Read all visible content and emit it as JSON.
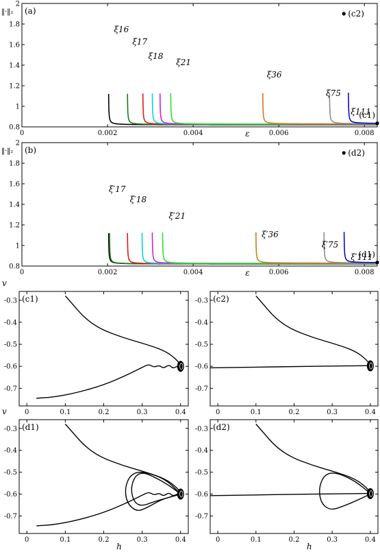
{
  "chart_data": [
    {
      "id": "a",
      "type": "line",
      "panel_label": "(a)",
      "ylabel": "‖·‖₂",
      "xlabel": "ε",
      "xlim": [
        0,
        0.0083
      ],
      "ylim": [
        0.8,
        2.0
      ],
      "xticks": [
        0,
        0.002,
        0.004,
        0.006,
        0.008
      ],
      "xtick_labels": [
        "0",
        "0.002",
        "0.004",
        "0.006",
        "0.008"
      ],
      "yticks": [
        0.8,
        1.0,
        1.2,
        1.4,
        1.6,
        1.8,
        2.0
      ],
      "ytick_labels": [
        "0.8",
        "1",
        "1.2",
        "1.4",
        "1.6",
        "1.8",
        "2"
      ],
      "series": [
        {
          "name": "ξ16",
          "x_asym": 0.00202,
          "x_end": 0.0083,
          "y_floor": 0.82,
          "color": "#000000",
          "label_x": 0.00215,
          "label_y": 1.72
        },
        {
          "name": "ξ17",
          "x_asym": 0.00246,
          "x_end": 0.0083,
          "y_floor": 0.822,
          "color": "#1a7a1a",
          "label_x": 0.00258,
          "label_y": 1.6
        },
        {
          "name": "ξ18",
          "x_asym": 0.00282,
          "x_end": 0.0083,
          "y_floor": 0.824,
          "color": "#e01818",
          "label_x": 0.00295,
          "label_y": 1.46
        },
        {
          "name": "",
          "x_asym": 0.00304,
          "x_end": 0.0083,
          "y_floor": 0.825,
          "color": "#00d4e0",
          "label_x": 0,
          "label_y": 0
        },
        {
          "name": "",
          "x_asym": 0.00322,
          "x_end": 0.0083,
          "y_floor": 0.826,
          "color": "#d020d0",
          "label_x": 0,
          "label_y": 0
        },
        {
          "name": "ξ21",
          "x_asym": 0.00347,
          "x_end": 0.0083,
          "y_floor": 0.827,
          "color": "#30e030",
          "label_x": 0.0036,
          "label_y": 1.4
        },
        {
          "name": "ξ36",
          "x_asym": 0.00562,
          "x_end": 0.0083,
          "y_floor": 0.828,
          "color": "#cc7a20",
          "label_x": 0.00572,
          "label_y": 1.28
        },
        {
          "name": "ξ75",
          "x_asym": 0.00718,
          "x_end": 0.0083,
          "y_floor": 0.829,
          "color": "#8c8c8c",
          "label_x": 0.0071,
          "label_y": 1.1
        },
        {
          "name": "ξ111",
          "x_asym": 0.00762,
          "x_end": 0.0083,
          "y_floor": 0.832,
          "color": "#0a0ac8",
          "label_x": 0.00768,
          "label_y": 0.92
        }
      ],
      "points": [
        {
          "label": "(c2)",
          "x": 0.00752,
          "y": 1.9
        },
        {
          "label": "(c1)",
          "x": 0.0083,
          "y": 0.835
        }
      ]
    },
    {
      "id": "b",
      "type": "line",
      "panel_label": "(b)",
      "ylabel": "‖·‖₂",
      "xlabel": "ε",
      "xlim": [
        0,
        0.0083
      ],
      "ylim": [
        0.8,
        2.0
      ],
      "xticks": [
        0,
        0.002,
        0.004,
        0.006,
        0.008
      ],
      "xtick_labels": [
        "0",
        "0.002",
        "0.004",
        "0.006",
        "0.008"
      ],
      "yticks": [
        0.8,
        1.0,
        1.2,
        1.4,
        1.6,
        1.8,
        2.0
      ],
      "ytick_labels": [
        "0.8",
        "1",
        "1.2",
        "1.4",
        "1.6",
        "1.8",
        "2"
      ],
      "series": [
        {
          "name": "",
          "x_asym": 0.00202,
          "x_end": 0.0083,
          "y_floor": 0.82,
          "color": "#000000",
          "label_x": 0,
          "label_y": 0
        },
        {
          "name": "",
          "x_asym": 0.00204,
          "x_end": 0.0083,
          "y_floor": 0.821,
          "color": "#1a7a1a",
          "label_x": 0,
          "label_y": 0
        },
        {
          "name": "ξ′17",
          "x_asym": 0.00246,
          "x_end": 0.0083,
          "y_floor": 0.822,
          "color": "#e01818",
          "label_x": 0.00203,
          "label_y": 1.52
        },
        {
          "name": "ξ′18",
          "x_asym": 0.0028,
          "x_end": 0.0083,
          "y_floor": 0.823,
          "color": "#00d4e0",
          "label_x": 0.00252,
          "label_y": 1.42
        },
        {
          "name": "",
          "x_asym": 0.00304,
          "x_end": 0.0083,
          "y_floor": 0.825,
          "color": "#d020d0",
          "label_x": 0,
          "label_y": 0
        },
        {
          "name": "ξ′21",
          "x_asym": 0.00328,
          "x_end": 0.0083,
          "y_floor": 0.826,
          "color": "#30e030",
          "label_x": 0.00343,
          "label_y": 1.26
        },
        {
          "name": "ξ′36",
          "x_asym": 0.00546,
          "x_end": 0.0083,
          "y_floor": 0.828,
          "color": "#cc7a20",
          "label_x": 0.0056,
          "label_y": 1.08
        },
        {
          "name": "ξ′75",
          "x_asym": 0.00705,
          "x_end": 0.0083,
          "y_floor": 0.829,
          "color": "#8c8c8c",
          "label_x": 0.007,
          "label_y": 0.98
        },
        {
          "name": "ξ′111",
          "x_asym": 0.00752,
          "x_end": 0.0083,
          "y_floor": 0.832,
          "color": "#0a0ac8",
          "label_x": 0.00768,
          "label_y": 0.86
        }
      ],
      "points": [
        {
          "label": "(d2)",
          "x": 0.00752,
          "y": 1.9
        },
        {
          "label": "(d1)",
          "x": 0.0083,
          "y": 0.835
        }
      ]
    },
    {
      "id": "c1",
      "type": "line",
      "panel_label": "(c1)",
      "ylabel": "v",
      "xlabel": "",
      "xlim": [
        -0.02,
        0.42
      ],
      "ylim": [
        -0.78,
        -0.26
      ],
      "xticks": [
        0,
        0.1,
        0.2,
        0.3,
        0.4
      ],
      "xtick_labels": [
        "0",
        "0.1",
        "0.2",
        "0.3",
        "0.4"
      ],
      "yticks": [
        -0.3,
        -0.4,
        -0.5,
        -0.6,
        -0.7
      ],
      "ytick_labels": [
        "-0.3",
        "-0.4",
        "-0.5",
        "-0.6",
        "-0.7"
      ],
      "curves": [
        {
          "points": [
            [
              0.1,
              -0.28
            ],
            [
              0.12,
              -0.32
            ],
            [
              0.15,
              -0.38
            ],
            [
              0.19,
              -0.43
            ],
            [
              0.25,
              -0.47
            ],
            [
              0.31,
              -0.5
            ],
            [
              0.36,
              -0.53
            ],
            [
              0.39,
              -0.57
            ],
            [
              0.4,
              -0.595
            ]
          ]
        },
        {
          "points": [
            [
              0.025,
              -0.745
            ],
            [
              0.07,
              -0.74
            ],
            [
              0.13,
              -0.72
            ],
            [
              0.2,
              -0.685
            ],
            [
              0.26,
              -0.64
            ],
            [
              0.3,
              -0.605
            ],
            [
              0.318,
              -0.59
            ],
            [
              0.33,
              -0.605
            ],
            [
              0.345,
              -0.595
            ],
            [
              0.355,
              -0.61
            ],
            [
              0.37,
              -0.592
            ],
            [
              0.38,
              -0.61
            ],
            [
              0.39,
              -0.6
            ],
            [
              0.4,
              -0.6
            ]
          ]
        }
      ],
      "blobs": [
        {
          "x": 0.4,
          "y": -0.6
        }
      ]
    },
    {
      "id": "c2",
      "type": "line",
      "panel_label": "(c2)",
      "ylabel": "",
      "xlabel": "",
      "xlim": [
        -0.02,
        0.42
      ],
      "ylim": [
        -0.78,
        -0.26
      ],
      "xticks": [
        0,
        0.1,
        0.2,
        0.3,
        0.4
      ],
      "xtick_labels": [
        "0",
        "0.1",
        "0.2",
        "0.3",
        "0.4"
      ],
      "yticks": [
        -0.3,
        -0.4,
        -0.5,
        -0.6,
        -0.7
      ],
      "ytick_labels": [
        "-0.3",
        "-0.4",
        "-0.5",
        "-0.6",
        "-0.7"
      ],
      "curves": [
        {
          "points": [
            [
              0.1,
              -0.28
            ],
            [
              0.12,
              -0.32
            ],
            [
              0.15,
              -0.38
            ],
            [
              0.19,
              -0.43
            ],
            [
              0.25,
              -0.47
            ],
            [
              0.31,
              -0.5
            ],
            [
              0.36,
              -0.53
            ],
            [
              0.39,
              -0.57
            ],
            [
              0.4,
              -0.595
            ]
          ]
        },
        {
          "points": [
            [
              -0.02,
              -0.607
            ],
            [
              0.1,
              -0.604
            ],
            [
              0.2,
              -0.601
            ],
            [
              0.3,
              -0.599
            ],
            [
              0.4,
              -0.597
            ]
          ]
        }
      ],
      "blobs": [
        {
          "x": 0.4,
          "y": -0.598
        }
      ]
    },
    {
      "id": "d1",
      "type": "line",
      "panel_label": "(d1)",
      "ylabel": "v",
      "xlabel": "h",
      "xlim": [
        -0.02,
        0.42
      ],
      "ylim": [
        -0.78,
        -0.26
      ],
      "xticks": [
        0,
        0.1,
        0.2,
        0.3,
        0.4
      ],
      "xtick_labels": [
        "0",
        "0.1",
        "0.2",
        "0.3",
        "0.4"
      ],
      "yticks": [
        -0.3,
        -0.4,
        -0.5,
        -0.6,
        -0.7
      ],
      "ytick_labels": [
        "-0.3",
        "-0.4",
        "-0.5",
        "-0.6",
        "-0.7"
      ],
      "curves": [
        {
          "points": [
            [
              0.1,
              -0.28
            ],
            [
              0.12,
              -0.32
            ],
            [
              0.15,
              -0.38
            ],
            [
              0.19,
              -0.43
            ],
            [
              0.25,
              -0.47
            ],
            [
              0.31,
              -0.5
            ],
            [
              0.36,
              -0.53
            ],
            [
              0.39,
              -0.57
            ],
            [
              0.4,
              -0.595
            ]
          ]
        },
        {
          "points": [
            [
              0.025,
              -0.745
            ],
            [
              0.07,
              -0.74
            ],
            [
              0.13,
              -0.72
            ],
            [
              0.2,
              -0.685
            ],
            [
              0.26,
              -0.64
            ],
            [
              0.3,
              -0.605
            ],
            [
              0.318,
              -0.59
            ],
            [
              0.33,
              -0.605
            ],
            [
              0.345,
              -0.595
            ],
            [
              0.355,
              -0.61
            ],
            [
              0.37,
              -0.592
            ],
            [
              0.38,
              -0.61
            ],
            [
              0.39,
              -0.6
            ],
            [
              0.4,
              -0.6
            ]
          ]
        },
        {
          "points": [
            [
              0.4,
              -0.6
            ],
            [
              0.36,
              -0.53
            ],
            [
              0.3,
              -0.495
            ],
            [
              0.27,
              -0.51
            ],
            [
              0.255,
              -0.57
            ],
            [
              0.26,
              -0.64
            ],
            [
              0.285,
              -0.68
            ],
            [
              0.31,
              -0.665
            ],
            [
              0.35,
              -0.625
            ],
            [
              0.38,
              -0.61
            ],
            [
              0.4,
              -0.6
            ]
          ]
        },
        {
          "points": [
            [
              0.4,
              -0.6
            ],
            [
              0.37,
              -0.56
            ],
            [
              0.33,
              -0.52
            ],
            [
              0.3,
              -0.5
            ],
            [
              0.28,
              -0.52
            ],
            [
              0.27,
              -0.58
            ],
            [
              0.28,
              -0.64
            ],
            [
              0.3,
              -0.655
            ],
            [
              0.33,
              -0.635
            ],
            [
              0.37,
              -0.615
            ],
            [
              0.4,
              -0.6
            ]
          ]
        }
      ],
      "blobs": [
        {
          "x": 0.4,
          "y": -0.6
        }
      ]
    },
    {
      "id": "d2",
      "type": "line",
      "panel_label": "(d2)",
      "ylabel": "",
      "xlabel": "h",
      "xlim": [
        -0.02,
        0.42
      ],
      "ylim": [
        -0.78,
        -0.26
      ],
      "xticks": [
        0,
        0.1,
        0.2,
        0.3,
        0.4
      ],
      "xtick_labels": [
        "0",
        "0.1",
        "0.2",
        "0.3",
        "0.4"
      ],
      "yticks": [
        -0.3,
        -0.4,
        -0.5,
        -0.6,
        -0.7
      ],
      "ytick_labels": [
        "-0.3",
        "-0.4",
        "-0.5",
        "-0.6",
        "-0.7"
      ],
      "curves": [
        {
          "points": [
            [
              0.1,
              -0.28
            ],
            [
              0.12,
              -0.32
            ],
            [
              0.15,
              -0.38
            ],
            [
              0.19,
              -0.43
            ],
            [
              0.25,
              -0.47
            ],
            [
              0.31,
              -0.5
            ],
            [
              0.36,
              -0.53
            ],
            [
              0.39,
              -0.57
            ],
            [
              0.4,
              -0.595
            ]
          ]
        },
        {
          "points": [
            [
              -0.02,
              -0.607
            ],
            [
              0.1,
              -0.604
            ],
            [
              0.2,
              -0.601
            ],
            [
              0.3,
              -0.599
            ],
            [
              0.4,
              -0.597
            ]
          ]
        },
        {
          "points": [
            [
              0.4,
              -0.597
            ],
            [
              0.36,
              -0.54
            ],
            [
              0.31,
              -0.5
            ],
            [
              0.28,
              -0.51
            ],
            [
              0.265,
              -0.57
            ],
            [
              0.27,
              -0.64
            ],
            [
              0.295,
              -0.675
            ],
            [
              0.33,
              -0.655
            ],
            [
              0.37,
              -0.625
            ],
            [
              0.4,
              -0.6
            ]
          ]
        }
      ],
      "blobs": [
        {
          "x": 0.4,
          "y": -0.598
        }
      ]
    }
  ]
}
